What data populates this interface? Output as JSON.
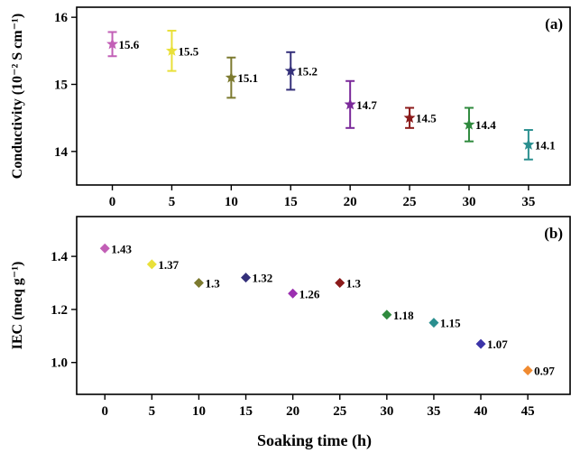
{
  "chart_data": [
    {
      "type": "scatter",
      "panel_label": "(a)",
      "xlabel": "",
      "ylabel": "Conductivity (10⁻² S cm⁻¹)",
      "xlim": [
        -3,
        38.5
      ],
      "ylim": [
        13.5,
        16.15
      ],
      "xticks": [
        0,
        5,
        10,
        15,
        20,
        25,
        30,
        35
      ],
      "yticks": [
        14,
        15,
        16
      ],
      "marker": "star",
      "error_bars": true,
      "points": [
        {
          "x": 0,
          "y": 15.6,
          "err": 0.18,
          "label": "15.6",
          "color": "#c25fb6"
        },
        {
          "x": 5,
          "y": 15.5,
          "err": 0.3,
          "label": "15.5",
          "color": "#e9e03a"
        },
        {
          "x": 10,
          "y": 15.1,
          "err": 0.3,
          "label": "15.1",
          "color": "#7c7a2f"
        },
        {
          "x": 15,
          "y": 15.2,
          "err": 0.28,
          "label": "15.2",
          "color": "#34307a"
        },
        {
          "x": 20,
          "y": 14.7,
          "err": 0.35,
          "label": "14.7",
          "color": "#7b2a9a"
        },
        {
          "x": 25,
          "y": 14.5,
          "err": 0.15,
          "label": "14.5",
          "color": "#8b1a1a"
        },
        {
          "x": 30,
          "y": 14.4,
          "err": 0.25,
          "label": "14.4",
          "color": "#2f8a3e"
        },
        {
          "x": 35,
          "y": 14.1,
          "err": 0.22,
          "label": "14.1",
          "color": "#2a8f8f"
        }
      ]
    },
    {
      "type": "scatter",
      "panel_label": "(b)",
      "xlabel": "Soaking time (h)",
      "ylabel": "IEC (meq g⁻¹)",
      "xlim": [
        -3,
        49.5
      ],
      "ylim": [
        0.88,
        1.55
      ],
      "xticks": [
        0,
        5,
        10,
        15,
        20,
        25,
        30,
        35,
        40,
        45
      ],
      "yticks": [
        1.0,
        1.2,
        1.4
      ],
      "ytick_labels": [
        "1.0",
        "1.2",
        "1.4"
      ],
      "marker": "diamond",
      "error_bars": false,
      "points": [
        {
          "x": 0,
          "y": 1.43,
          "label": "1.43",
          "color": "#c25fb6"
        },
        {
          "x": 5,
          "y": 1.37,
          "label": "1.37",
          "color": "#e9e03a"
        },
        {
          "x": 10,
          "y": 1.3,
          "label": "1.3",
          "color": "#7c7a2f"
        },
        {
          "x": 15,
          "y": 1.32,
          "label": "1.32",
          "color": "#34307a"
        },
        {
          "x": 20,
          "y": 1.26,
          "label": "1.26",
          "color": "#9b2fb0"
        },
        {
          "x": 25,
          "y": 1.3,
          "label": "1.3",
          "color": "#8b1a1a"
        },
        {
          "x": 30,
          "y": 1.18,
          "label": "1.18",
          "color": "#2f8a3e"
        },
        {
          "x": 35,
          "y": 1.15,
          "label": "1.15",
          "color": "#2a8f8f"
        },
        {
          "x": 40,
          "y": 1.07,
          "label": "1.07",
          "color": "#3c34a8"
        },
        {
          "x": 45,
          "y": 0.97,
          "label": "0.97",
          "color": "#f08a30"
        }
      ]
    }
  ]
}
